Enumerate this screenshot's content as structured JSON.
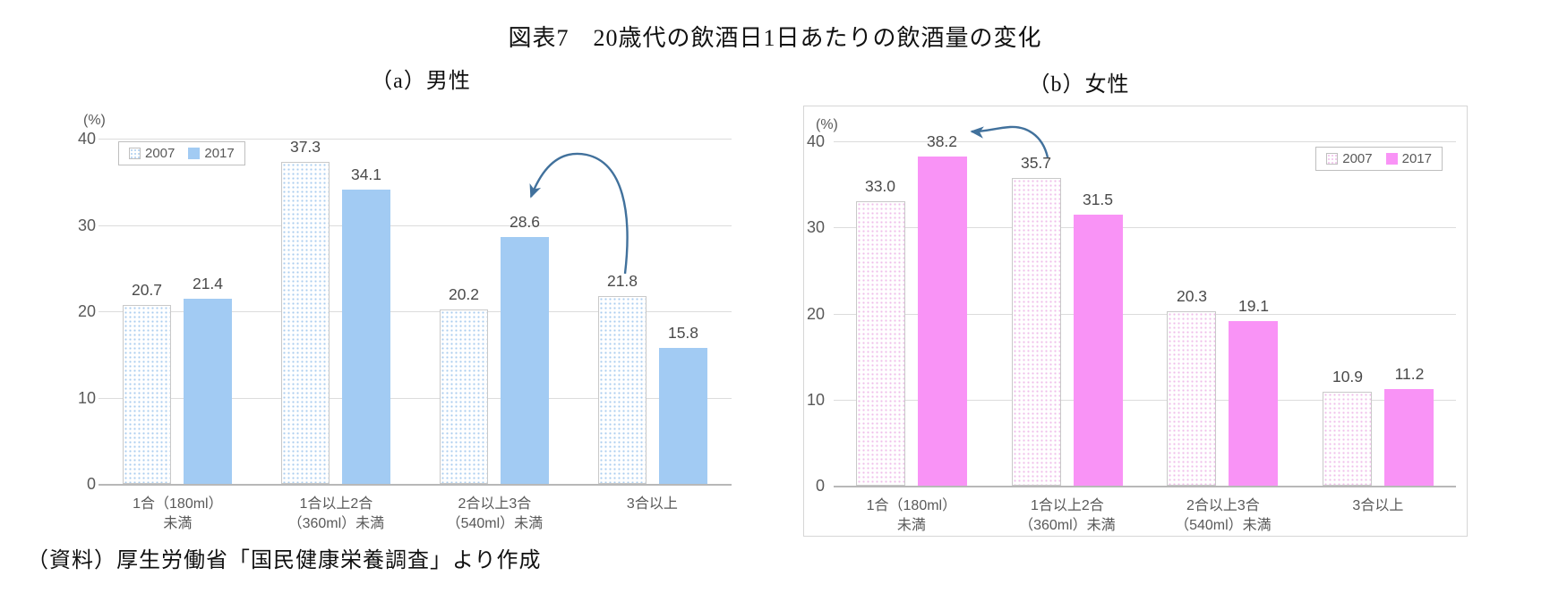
{
  "page": {
    "title": "図表7　20歳代の飲酒日1日あたりの飲酒量の変化",
    "source": "（資料）厚生労働省「国民健康栄養調査」より作成"
  },
  "colors": {
    "men_2017_bar": "#A2CBF3",
    "men_2007_dots": "#AACCEF",
    "women_2017_bar": "#F993F6",
    "women_2007_dots": "#EFBDEA",
    "bar_border": "#C9C9C9",
    "gridline": "#DCDCDC",
    "axis_line": "#B8B8B8",
    "axis_text": "#595959",
    "value_text": "#4a4a4a",
    "arrow": "#41719C",
    "frame": "#D6D6D6"
  },
  "chart_data": [
    {
      "type": "bar",
      "panel_label": "（a）男性",
      "unit_label": "(%)",
      "categories": [
        "1合（180ml）未満",
        "1合以上2合（360ml）未満",
        "2合以上3合（540ml）未満",
        "3合以上"
      ],
      "categories_lines": [
        [
          "1合（180ml）",
          "未満"
        ],
        [
          "1合以上2合",
          "（360ml）未満"
        ],
        [
          "2合以上3合",
          "（540ml）未満"
        ],
        [
          "3合以上"
        ]
      ],
      "series": [
        {
          "name": "2007",
          "style": "dotted",
          "values": [
            20.7,
            37.3,
            20.2,
            21.8
          ]
        },
        {
          "name": "2017",
          "style": "solid",
          "values": [
            21.4,
            34.1,
            28.6,
            15.8
          ]
        }
      ],
      "ylim": [
        0,
        40
      ],
      "yticks": [
        40,
        30,
        20,
        10,
        0
      ],
      "grid": true,
      "legend_position": "top-left",
      "annotation": "curved arrow from 21.8 (2007, 3合以上) pointing to 28.6 (2017, 2合以上3合（540ml）未満)"
    },
    {
      "type": "bar",
      "panel_label": "（b）女性",
      "unit_label": "(%)",
      "categories": [
        "1合（180ml）未満",
        "1合以上2合（360ml）未満",
        "2合以上3合（540ml）未満",
        "3合以上"
      ],
      "categories_lines": [
        [
          "1合（180ml）",
          "未満"
        ],
        [
          "1合以上2合",
          "（360ml）未満"
        ],
        [
          "2合以上3合",
          "（540ml）未満"
        ],
        [
          "3合以上"
        ]
      ],
      "series": [
        {
          "name": "2007",
          "style": "dotted",
          "values": [
            33.0,
            35.7,
            20.3,
            10.9
          ]
        },
        {
          "name": "2017",
          "style": "solid",
          "values": [
            38.2,
            31.5,
            19.1,
            11.2
          ]
        }
      ],
      "ylim": [
        0,
        40
      ],
      "yticks": [
        40,
        30,
        20,
        10,
        0
      ],
      "grid": true,
      "legend_position": "top-right",
      "annotation": "curved arrow from 35.7 (2007, 1合以上2合（360ml）未満) pointing to 38.2 (2017, 1合（180ml）未満)"
    }
  ]
}
